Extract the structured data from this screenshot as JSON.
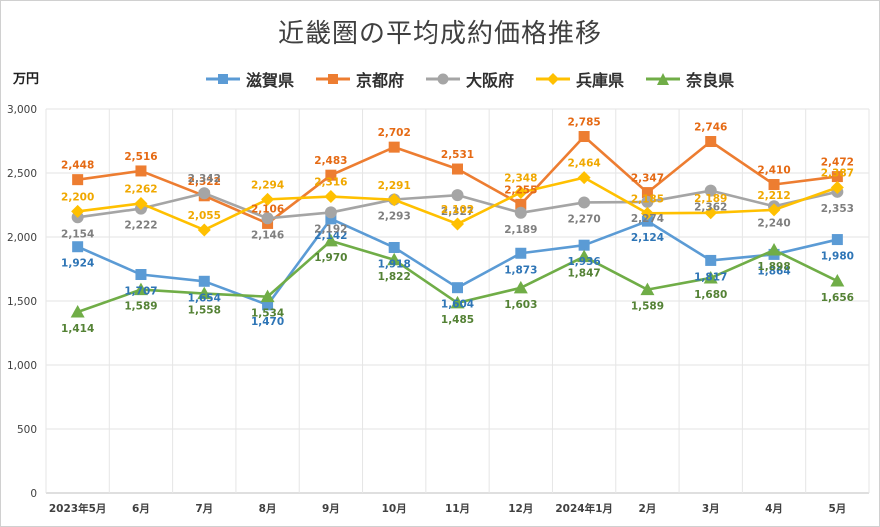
{
  "chart_data": {
    "type": "line",
    "title": "近畿圏の平均成約価格推移",
    "ylabel": "万円",
    "xlabel": "",
    "ylim": [
      0,
      3000
    ],
    "yticks": [
      "0",
      "500",
      "1,000",
      "1,500",
      "2,000",
      "2,500",
      "3,000"
    ],
    "ytick_values": [
      0,
      500,
      1000,
      1500,
      2000,
      2500,
      3000
    ],
    "grid": true,
    "legend_position": "top",
    "categories": [
      "2023年5月",
      "6月",
      "7月",
      "8月",
      "9月",
      "10月",
      "11月",
      "12月",
      "2024年1月",
      "2月",
      "3月",
      "4月",
      "5月"
    ],
    "series": [
      {
        "name": "滋賀県",
        "color": "#5b9bd5",
        "label_color": "#2e75b6",
        "marker": "square",
        "values": [
          1924,
          1707,
          1654,
          1470,
          2142,
          1918,
          1604,
          1873,
          1936,
          2124,
          1817,
          1864,
          1980
        ],
        "labels": [
          "1,924",
          "1,707",
          "1,654",
          "1,470",
          "2,142",
          "1,918",
          "1,604",
          "1,873",
          "1,936",
          "2,124",
          "1,817",
          "1,864",
          "1,980"
        ]
      },
      {
        "name": "京都府",
        "color": "#ed7d31",
        "label_color": "#e56a14",
        "marker": "square",
        "values": [
          2448,
          2516,
          2322,
          2106,
          2483,
          2702,
          2531,
          2255,
          2785,
          2347,
          2746,
          2410,
          2472
        ],
        "labels": [
          "2,448",
          "2,516",
          "2,322",
          "2,106",
          "2,483",
          "2,702",
          "2,531",
          "2,255",
          "2,785",
          "2,347",
          "2,746",
          "2,410",
          "2,472"
        ]
      },
      {
        "name": "大阪府",
        "color": "#a5a5a5",
        "label_color": "#7f7f7f",
        "marker": "circle",
        "values": [
          2154,
          2222,
          2342,
          2146,
          2192,
          2293,
          2327,
          2189,
          2270,
          2274,
          2362,
          2240,
          2353
        ],
        "labels": [
          "2,154",
          "2,222",
          "2,342",
          "2,146",
          "2,192",
          "2,293",
          "2,327",
          "2,189",
          "2,270",
          "2,274",
          "2,362",
          "2,240",
          "2,353"
        ]
      },
      {
        "name": "兵庫県",
        "color": "#ffc000",
        "label_color": "#f0a800",
        "marker": "diamond",
        "values": [
          2200,
          2262,
          2055,
          2294,
          2316,
          2291,
          2102,
          2348,
          2464,
          2185,
          2189,
          2212,
          2387
        ],
        "labels": [
          "2,200",
          "2,262",
          "2,055",
          "2,294",
          "2,316",
          "2,291",
          "2,102",
          "2,348",
          "2,464",
          "2,185",
          "2,189",
          "2,212",
          "2,387"
        ]
      },
      {
        "name": "奈良県",
        "color": "#70ad47",
        "label_color": "#548235",
        "marker": "triangle",
        "values": [
          1414,
          1589,
          1558,
          1534,
          1970,
          1822,
          1485,
          1603,
          1847,
          1589,
          1680,
          1898,
          1656
        ],
        "labels": [
          "1,414",
          "1,589",
          "1,558",
          "1,534",
          "1,970",
          "1,822",
          "1,485",
          "1,603",
          "1,847",
          "1,589",
          "1,680",
          "1,898",
          "1,656"
        ]
      }
    ]
  }
}
